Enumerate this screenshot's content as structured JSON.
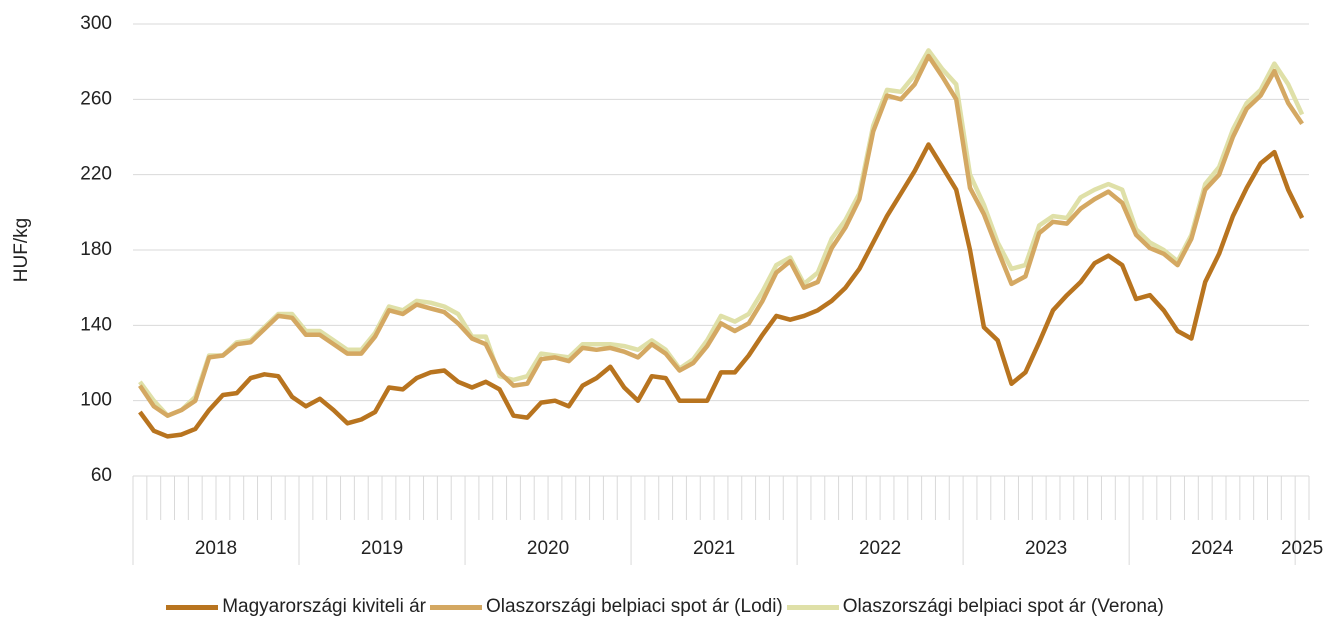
{
  "chart_data": {
    "type": "line",
    "y_label": "HUF/kg",
    "categories": [
      "2018",
      null,
      null,
      null,
      null,
      null,
      null,
      null,
      null,
      null,
      null,
      null,
      "2019",
      null,
      null,
      null,
      null,
      null,
      null,
      null,
      null,
      null,
      null,
      null,
      "2020",
      null,
      null,
      null,
      null,
      null,
      null,
      null,
      null,
      null,
      null,
      null,
      "2021",
      null,
      null,
      null,
      null,
      null,
      null,
      null,
      null,
      null,
      null,
      null,
      "2022",
      null,
      null,
      null,
      null,
      null,
      null,
      null,
      null,
      null,
      null,
      null,
      "2023",
      null,
      null,
      null,
      null,
      null,
      null,
      null,
      null,
      null,
      null,
      null,
      "2024",
      null,
      null,
      null,
      null,
      null,
      null,
      null,
      null,
      null,
      null,
      null,
      "2025"
    ],
    "series": [
      {
        "name": "Magyarországi kiviteli ár",
        "color": "#b8741f",
        "values": [
          94,
          84,
          81,
          82,
          85,
          95,
          103,
          104,
          112,
          114,
          113,
          102,
          97,
          101,
          95,
          88,
          90,
          94,
          107,
          106,
          112,
          115,
          116,
          110,
          107,
          110,
          106,
          92,
          91,
          99,
          100,
          97,
          108,
          112,
          118,
          107,
          100,
          113,
          112,
          100,
          100,
          100,
          115,
          115,
          124,
          135,
          145,
          143,
          145,
          148,
          153,
          160,
          170,
          184,
          198,
          210,
          222,
          236,
          224,
          212,
          180,
          139,
          132,
          109,
          115,
          131,
          148,
          156,
          163,
          173,
          177,
          172,
          154,
          156,
          148,
          137,
          133,
          163,
          178,
          198,
          213,
          226,
          232,
          212,
          197
        ]
      },
      {
        "name": "Olaszországi belpiaci spot ár (Lodi)",
        "color": "#d4a862",
        "values": [
          108,
          97,
          92,
          95,
          100,
          123,
          124,
          130,
          131,
          138,
          145,
          144,
          135,
          135,
          130,
          125,
          125,
          134,
          148,
          146,
          151,
          149,
          147,
          141,
          133,
          130,
          115,
          108,
          109,
          122,
          123,
          121,
          128,
          127,
          128,
          126,
          123,
          130,
          125,
          116,
          120,
          129,
          141,
          137,
          141,
          153,
          168,
          174,
          160,
          163,
          181,
          192,
          207,
          243,
          262,
          260,
          268,
          283,
          272,
          260,
          213,
          199,
          180,
          162,
          166,
          189,
          195,
          194,
          202,
          207,
          211,
          205,
          188,
          181,
          178,
          172,
          186,
          212,
          220,
          240,
          255,
          262,
          275,
          258,
          247
        ]
      },
      {
        "name": "Olaszországi belpiaci spot ár (Verona)",
        "color": "#dfe0a8",
        "values": [
          110,
          100,
          92,
          95,
          102,
          124,
          124,
          131,
          132,
          139,
          146,
          146,
          137,
          137,
          132,
          127,
          127,
          136,
          150,
          148,
          153,
          152,
          150,
          146,
          134,
          134,
          113,
          111,
          113,
          125,
          124,
          123,
          130,
          130,
          130,
          129,
          127,
          132,
          127,
          117,
          122,
          132,
          145,
          142,
          146,
          158,
          172,
          176,
          162,
          168,
          186,
          196,
          210,
          246,
          265,
          264,
          273,
          286,
          276,
          268,
          220,
          204,
          184,
          170,
          172,
          193,
          198,
          197,
          208,
          212,
          215,
          212,
          191,
          184,
          180,
          174,
          188,
          215,
          224,
          244,
          258,
          265,
          279,
          268,
          252
        ]
      }
    ],
    "ylim": [
      60,
      300
    ],
    "yticks": [
      60,
      100,
      140,
      180,
      220,
      260,
      300
    ],
    "grid": true
  }
}
